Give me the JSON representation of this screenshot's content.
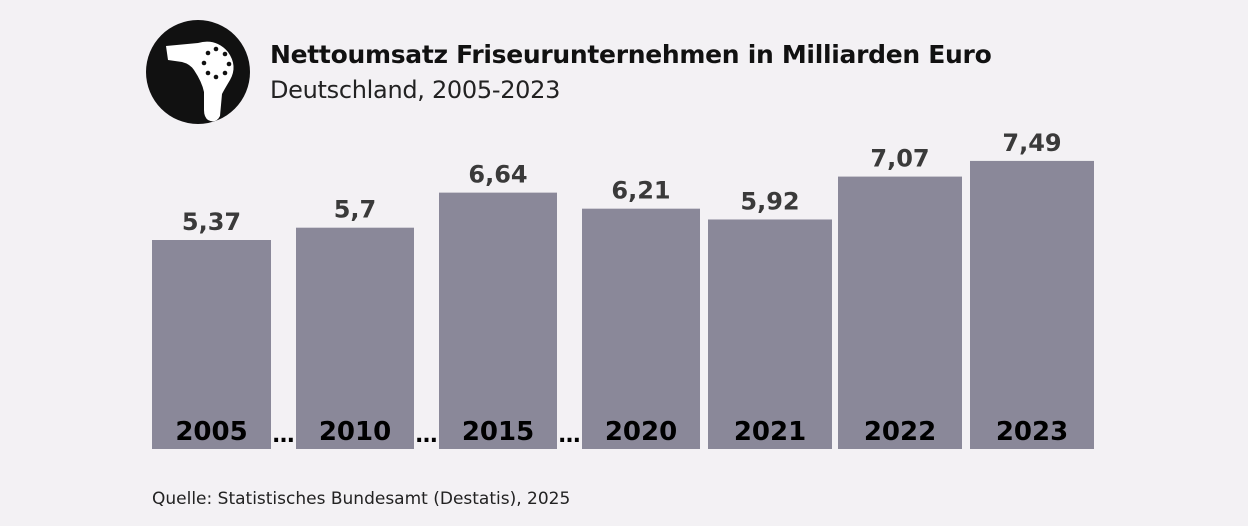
{
  "logo": {
    "icon": "hair-dryer-icon"
  },
  "chart_data": {
    "type": "bar",
    "title": "Nettoumsatz Friseurunternehmen in Milliarden Euro",
    "subtitle": "Deutschland, 2005-2023",
    "categories": [
      "2005",
      "2010",
      "2015",
      "2020",
      "2021",
      "2022",
      "2023"
    ],
    "values": [
      5.37,
      5.7,
      6.64,
      6.21,
      5.92,
      7.07,
      7.49
    ],
    "data_labels": [
      "5,37",
      "5,7",
      "6,64",
      "6,21",
      "5,92",
      "7,07",
      "7,49"
    ],
    "gap_markers": [
      "…",
      "…",
      "…"
    ],
    "xlabel": "",
    "ylabel": "",
    "grid": false,
    "colors": {
      "bar": "#8a8899",
      "background": "#f3f1f4",
      "label": "#3a3a3a",
      "category": "#000000"
    }
  },
  "source": "Quelle: Statistisches Bundesamt (Destatis), 2025"
}
